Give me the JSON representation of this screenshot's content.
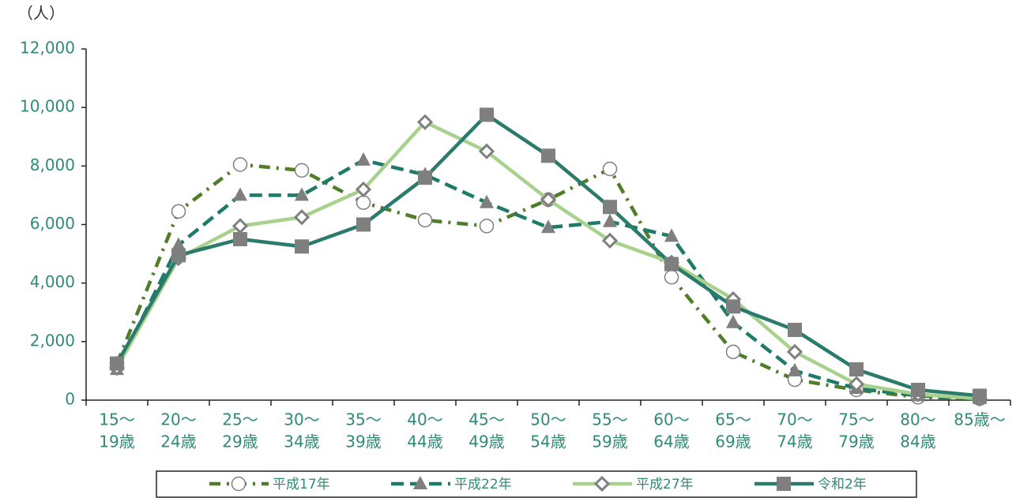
{
  "chart_data": {
    "type": "line",
    "unit_label": "（人）",
    "categories": [
      [
        "15～",
        "19歳"
      ],
      [
        "20～",
        "24歳"
      ],
      [
        "25～",
        "29歳"
      ],
      [
        "30～",
        "34歳"
      ],
      [
        "35～",
        "39歳"
      ],
      [
        "40～",
        "44歳"
      ],
      [
        "45～",
        "49歳"
      ],
      [
        "50～",
        "54歳"
      ],
      [
        "55～",
        "59歳"
      ],
      [
        "60～",
        "64歳"
      ],
      [
        "65～",
        "69歳"
      ],
      [
        "70～",
        "74歳"
      ],
      [
        "75～",
        "79歳"
      ],
      [
        "80～",
        "84歳"
      ],
      [
        "85歳～"
      ]
    ],
    "ylim": [
      0,
      12000
    ],
    "yticks": [
      0,
      {
        "value": 2000,
        "label": "2,000"
      },
      {
        "value": 4000,
        "label": "4,000"
      },
      {
        "value": 6000,
        "label": "6,000"
      },
      {
        "value": 8000,
        "label": "8,000"
      },
      {
        "value": 10000,
        "label": "10,000"
      },
      {
        "value": 12000,
        "label": "12,000"
      }
    ],
    "grid": false,
    "legend": "bottom",
    "series": [
      {
        "name": "平成17年",
        "color": "#507d2a",
        "dash": "dashdot",
        "marker": "circle",
        "values": [
          1250,
          6450,
          8050,
          7850,
          6750,
          6150,
          5950,
          6850,
          7900,
          4200,
          1650,
          700,
          350,
          100,
          50
        ]
      },
      {
        "name": "平成22年",
        "color": "#1e7b68",
        "dash": "dash",
        "marker": "triangle",
        "values": [
          1050,
          5300,
          7000,
          7000,
          8200,
          7700,
          6750,
          5900,
          6100,
          5600,
          2650,
          1000,
          400,
          150,
          50
        ]
      },
      {
        "name": "平成27年",
        "color": "#a9d18e",
        "dash": "solid",
        "marker": "diamond",
        "values": [
          1100,
          4850,
          5950,
          6250,
          7200,
          9500,
          8500,
          6850,
          5450,
          4700,
          3450,
          1650,
          550,
          200,
          50
        ]
      },
      {
        "name": "令和2年",
        "color": "#2a7b6c",
        "dash": "solid",
        "marker": "square",
        "values": [
          1250,
          4950,
          5500,
          5250,
          6000,
          7600,
          9750,
          8350,
          6600,
          4650,
          3200,
          2400,
          1050,
          350,
          150
        ]
      }
    ]
  }
}
